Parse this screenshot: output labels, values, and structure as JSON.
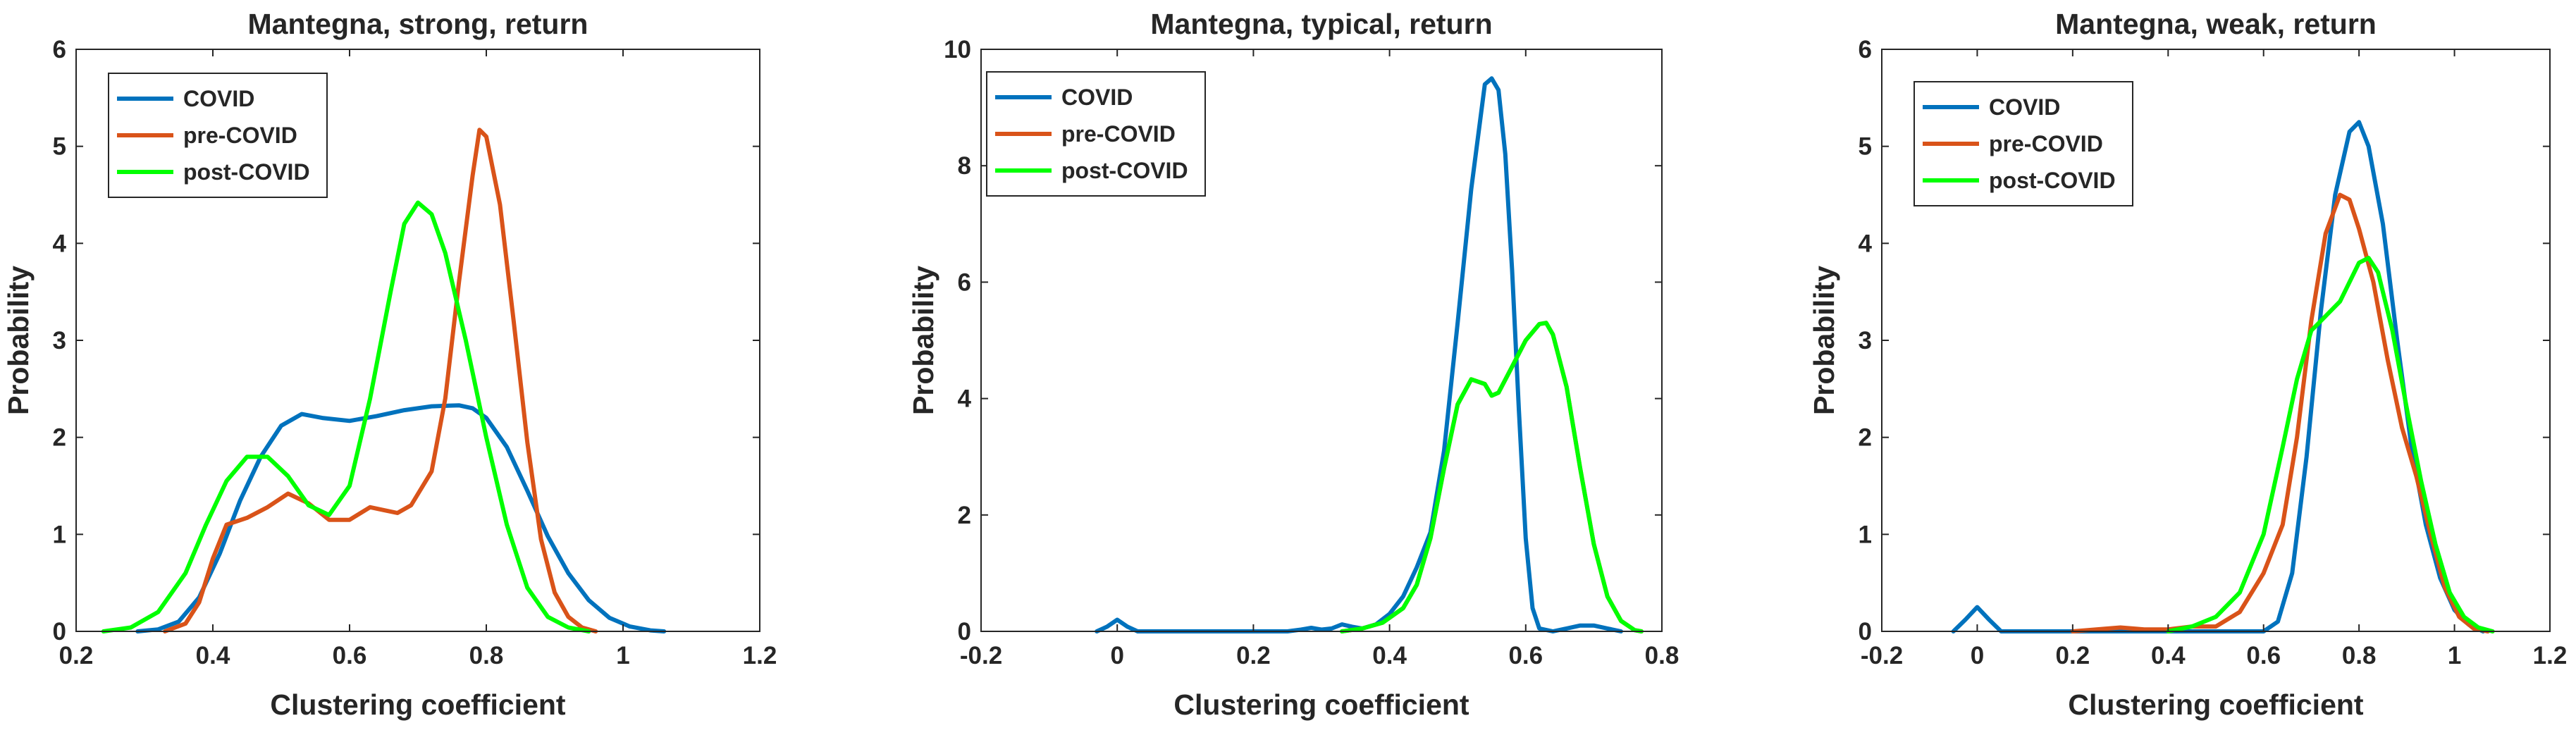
{
  "colors": {
    "COVID": "#0072BD",
    "pre-COVID": "#D95319",
    "post-COVID": "#00FF00"
  },
  "chart_data": [
    {
      "type": "line",
      "title": "Mantegna, strong, return",
      "xlabel": "Clustering coefficient",
      "ylabel": "Probability",
      "xlim": [
        0.2,
        1.2
      ],
      "ylim": [
        0,
        6
      ],
      "xticks": [
        0.2,
        0.4,
        0.6,
        0.8,
        1,
        1.2
      ],
      "xtick_labels": [
        "0.2",
        "0.4",
        "0.6",
        "0.8",
        "1",
        "1.2"
      ],
      "yticks": [
        0,
        1,
        2,
        3,
        4,
        5,
        6
      ],
      "ytick_labels": [
        "0",
        "1",
        "2",
        "3",
        "4",
        "5",
        "6"
      ],
      "legend": [
        "COVID",
        "pre-COVID",
        "post-COVID"
      ],
      "legend_position": "top-left",
      "series": [
        {
          "name": "COVID",
          "points": [
            [
              0.29,
              0
            ],
            [
              0.32,
              0.02
            ],
            [
              0.35,
              0.1
            ],
            [
              0.38,
              0.35
            ],
            [
              0.41,
              0.8
            ],
            [
              0.44,
              1.35
            ],
            [
              0.47,
              1.8
            ],
            [
              0.5,
              2.12
            ],
            [
              0.53,
              2.24
            ],
            [
              0.56,
              2.2
            ],
            [
              0.6,
              2.17
            ],
            [
              0.64,
              2.22
            ],
            [
              0.68,
              2.28
            ],
            [
              0.72,
              2.32
            ],
            [
              0.76,
              2.33
            ],
            [
              0.78,
              2.3
            ],
            [
              0.8,
              2.2
            ],
            [
              0.83,
              1.9
            ],
            [
              0.86,
              1.45
            ],
            [
              0.89,
              0.98
            ],
            [
              0.92,
              0.6
            ],
            [
              0.95,
              0.32
            ],
            [
              0.98,
              0.14
            ],
            [
              1.01,
              0.05
            ],
            [
              1.04,
              0.01
            ],
            [
              1.06,
              0
            ]
          ]
        },
        {
          "name": "pre-COVID",
          "points": [
            [
              0.33,
              0
            ],
            [
              0.36,
              0.08
            ],
            [
              0.38,
              0.3
            ],
            [
              0.4,
              0.75
            ],
            [
              0.42,
              1.1
            ],
            [
              0.45,
              1.17
            ],
            [
              0.48,
              1.28
            ],
            [
              0.51,
              1.42
            ],
            [
              0.54,
              1.32
            ],
            [
              0.57,
              1.15
            ],
            [
              0.6,
              1.15
            ],
            [
              0.63,
              1.28
            ],
            [
              0.65,
              1.25
            ],
            [
              0.67,
              1.22
            ],
            [
              0.69,
              1.3
            ],
            [
              0.72,
              1.65
            ],
            [
              0.74,
              2.4
            ],
            [
              0.76,
              3.6
            ],
            [
              0.78,
              4.7
            ],
            [
              0.79,
              5.17
            ],
            [
              0.8,
              5.1
            ],
            [
              0.82,
              4.4
            ],
            [
              0.84,
              3.2
            ],
            [
              0.86,
              1.95
            ],
            [
              0.88,
              0.95
            ],
            [
              0.9,
              0.4
            ],
            [
              0.92,
              0.15
            ],
            [
              0.94,
              0.04
            ],
            [
              0.96,
              0
            ]
          ]
        },
        {
          "name": "post-COVID",
          "points": [
            [
              0.24,
              0
            ],
            [
              0.28,
              0.04
            ],
            [
              0.32,
              0.2
            ],
            [
              0.36,
              0.6
            ],
            [
              0.39,
              1.1
            ],
            [
              0.42,
              1.55
            ],
            [
              0.45,
              1.8
            ],
            [
              0.48,
              1.8
            ],
            [
              0.51,
              1.6
            ],
            [
              0.54,
              1.3
            ],
            [
              0.57,
              1.2
            ],
            [
              0.6,
              1.5
            ],
            [
              0.63,
              2.4
            ],
            [
              0.66,
              3.5
            ],
            [
              0.68,
              4.2
            ],
            [
              0.7,
              4.42
            ],
            [
              0.72,
              4.3
            ],
            [
              0.74,
              3.9
            ],
            [
              0.77,
              3.0
            ],
            [
              0.8,
              2.0
            ],
            [
              0.83,
              1.1
            ],
            [
              0.86,
              0.45
            ],
            [
              0.89,
              0.15
            ],
            [
              0.92,
              0.04
            ],
            [
              0.95,
              0
            ]
          ]
        }
      ]
    },
    {
      "type": "line",
      "title": "Mantegna, typical, return",
      "xlabel": "Clustering coefficient",
      "ylabel": "Probability",
      "xlim": [
        -0.2,
        0.8
      ],
      "ylim": [
        0,
        10
      ],
      "xticks": [
        -0.2,
        0,
        0.2,
        0.4,
        0.6,
        0.8
      ],
      "xtick_labels": [
        "-0.2",
        "0",
        "0.2",
        "0.4",
        "0.6",
        "0.8"
      ],
      "yticks": [
        0,
        2,
        4,
        6,
        8,
        10
      ],
      "ytick_labels": [
        "0",
        "2",
        "4",
        "6",
        "8",
        "10"
      ],
      "legend": [
        "COVID",
        "pre-COVID",
        "post-COVID"
      ],
      "legend_position": "top-left",
      "series": [
        {
          "name": "COVID",
          "points": [
            [
              -0.03,
              0
            ],
            [
              -0.015,
              0.08
            ],
            [
              0,
              0.2
            ],
            [
              0.015,
              0.08
            ],
            [
              0.03,
              0
            ],
            [
              0.25,
              0
            ],
            [
              0.27,
              0.03
            ],
            [
              0.285,
              0.06
            ],
            [
              0.3,
              0.03
            ],
            [
              0.315,
              0.05
            ],
            [
              0.33,
              0.12
            ],
            [
              0.345,
              0.08
            ],
            [
              0.36,
              0.05
            ],
            [
              0.38,
              0.12
            ],
            [
              0.4,
              0.3
            ],
            [
              0.42,
              0.6
            ],
            [
              0.44,
              1.1
            ],
            [
              0.46,
              1.7
            ],
            [
              0.48,
              3.1
            ],
            [
              0.5,
              5.3
            ],
            [
              0.52,
              7.6
            ],
            [
              0.54,
              9.4
            ],
            [
              0.55,
              9.5
            ],
            [
              0.56,
              9.3
            ],
            [
              0.57,
              8.2
            ],
            [
              0.58,
              6.2
            ],
            [
              0.59,
              3.8
            ],
            [
              0.6,
              1.6
            ],
            [
              0.61,
              0.4
            ],
            [
              0.62,
              0.05
            ],
            [
              0.64,
              0
            ],
            [
              0.66,
              0.05
            ],
            [
              0.68,
              0.1
            ],
            [
              0.7,
              0.1
            ],
            [
              0.72,
              0.05
            ],
            [
              0.74,
              0
            ]
          ]
        },
        {
          "name": "pre-COVID",
          "points": [
            [
              0.33,
              0
            ],
            [
              0.36,
              0.05
            ],
            [
              0.39,
              0.15
            ],
            [
              0.42,
              0.4
            ],
            [
              0.44,
              0.8
            ],
            [
              0.46,
              1.6
            ],
            [
              0.48,
              2.8
            ],
            [
              0.5,
              3.9
            ],
            [
              0.52,
              4.33
            ],
            [
              0.54,
              4.25
            ],
            [
              0.55,
              4.05
            ],
            [
              0.56,
              4.1
            ],
            [
              0.58,
              4.55
            ],
            [
              0.6,
              5.0
            ],
            [
              0.62,
              5.28
            ],
            [
              0.63,
              5.3
            ],
            [
              0.64,
              5.1
            ],
            [
              0.66,
              4.2
            ],
            [
              0.68,
              2.8
            ],
            [
              0.7,
              1.5
            ],
            [
              0.72,
              0.6
            ],
            [
              0.74,
              0.18
            ],
            [
              0.76,
              0.02
            ],
            [
              0.77,
              0
            ]
          ]
        },
        {
          "name": "post-COVID",
          "points": [
            [
              0.33,
              0
            ],
            [
              0.36,
              0.05
            ],
            [
              0.39,
              0.15
            ],
            [
              0.42,
              0.4
            ],
            [
              0.44,
              0.8
            ],
            [
              0.46,
              1.6
            ],
            [
              0.48,
              2.8
            ],
            [
              0.5,
              3.9
            ],
            [
              0.52,
              4.33
            ],
            [
              0.54,
              4.25
            ],
            [
              0.55,
              4.05
            ],
            [
              0.56,
              4.1
            ],
            [
              0.58,
              4.55
            ],
            [
              0.6,
              5.0
            ],
            [
              0.62,
              5.28
            ],
            [
              0.63,
              5.3
            ],
            [
              0.64,
              5.1
            ],
            [
              0.66,
              4.2
            ],
            [
              0.68,
              2.8
            ],
            [
              0.7,
              1.5
            ],
            [
              0.72,
              0.6
            ],
            [
              0.74,
              0.18
            ],
            [
              0.76,
              0.02
            ],
            [
              0.77,
              0
            ]
          ]
        }
      ]
    },
    {
      "type": "line",
      "title": "Mantegna, weak, return",
      "xlabel": "Clustering coefficient",
      "ylabel": "Probability",
      "xlim": [
        -0.2,
        1.2
      ],
      "ylim": [
        0,
        6
      ],
      "xticks": [
        -0.2,
        0,
        0.2,
        0.4,
        0.6,
        0.8,
        1,
        1.2
      ],
      "xtick_labels": [
        "-0.2",
        "0",
        "0.2",
        "0.4",
        "0.6",
        "0.8",
        "1",
        "1.2"
      ],
      "yticks": [
        0,
        1,
        2,
        3,
        4,
        5,
        6
      ],
      "ytick_labels": [
        "0",
        "1",
        "2",
        "3",
        "4",
        "5",
        "6"
      ],
      "legend": [
        "COVID",
        "pre-COVID",
        "post-COVID"
      ],
      "legend_position": "top-left",
      "series": [
        {
          "name": "COVID",
          "points": [
            [
              -0.05,
              0
            ],
            [
              -0.025,
              0.12
            ],
            [
              0,
              0.25
            ],
            [
              0.025,
              0.12
            ],
            [
              0.05,
              0
            ],
            [
              0.6,
              0
            ],
            [
              0.63,
              0.1
            ],
            [
              0.66,
              0.6
            ],
            [
              0.69,
              1.8
            ],
            [
              0.72,
              3.3
            ],
            [
              0.75,
              4.5
            ],
            [
              0.78,
              5.15
            ],
            [
              0.8,
              5.25
            ],
            [
              0.82,
              5.0
            ],
            [
              0.85,
              4.2
            ],
            [
              0.88,
              3.0
            ],
            [
              0.91,
              1.9
            ],
            [
              0.94,
              1.1
            ],
            [
              0.97,
              0.55
            ],
            [
              1.0,
              0.22
            ],
            [
              1.03,
              0.07
            ],
            [
              1.06,
              0
            ]
          ]
        },
        {
          "name": "pre-COVID",
          "points": [
            [
              0.2,
              0
            ],
            [
              0.25,
              0.02
            ],
            [
              0.3,
              0.04
            ],
            [
              0.35,
              0.02
            ],
            [
              0.4,
              0.02
            ],
            [
              0.45,
              0.05
            ],
            [
              0.5,
              0.05
            ],
            [
              0.55,
              0.2
            ],
            [
              0.6,
              0.6
            ],
            [
              0.64,
              1.1
            ],
            [
              0.67,
              2.0
            ],
            [
              0.7,
              3.2
            ],
            [
              0.73,
              4.1
            ],
            [
              0.76,
              4.5
            ],
            [
              0.78,
              4.45
            ],
            [
              0.8,
              4.15
            ],
            [
              0.83,
              3.6
            ],
            [
              0.86,
              2.8
            ],
            [
              0.89,
              2.1
            ],
            [
              0.92,
              1.6
            ],
            [
              0.95,
              1.0
            ],
            [
              0.98,
              0.45
            ],
            [
              1.01,
              0.15
            ],
            [
              1.04,
              0.03
            ],
            [
              1.07,
              0
            ]
          ]
        },
        {
          "name": "post-COVID",
          "points": [
            [
              0.4,
              0
            ],
            [
              0.45,
              0.05
            ],
            [
              0.5,
              0.15
            ],
            [
              0.55,
              0.4
            ],
            [
              0.6,
              1.0
            ],
            [
              0.64,
              1.9
            ],
            [
              0.67,
              2.6
            ],
            [
              0.7,
              3.1
            ],
            [
              0.73,
              3.25
            ],
            [
              0.76,
              3.4
            ],
            [
              0.78,
              3.6
            ],
            [
              0.8,
              3.8
            ],
            [
              0.82,
              3.85
            ],
            [
              0.84,
              3.7
            ],
            [
              0.87,
              3.1
            ],
            [
              0.9,
              2.3
            ],
            [
              0.93,
              1.55
            ],
            [
              0.96,
              0.9
            ],
            [
              0.99,
              0.4
            ],
            [
              1.02,
              0.15
            ],
            [
              1.05,
              0.04
            ],
            [
              1.08,
              0
            ]
          ]
        }
      ]
    }
  ]
}
